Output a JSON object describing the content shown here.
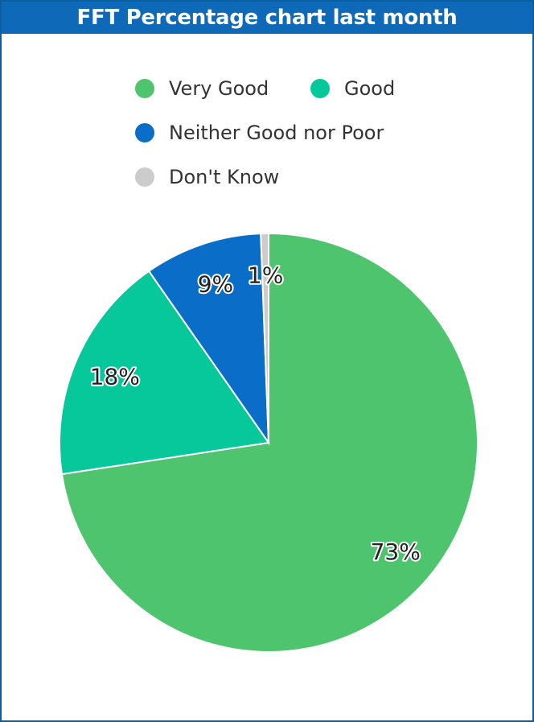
{
  "title": "FFT Percentage chart last month",
  "chart_data": {
    "type": "pie",
    "title": "FFT Percentage chart last month",
    "legend_position": "top",
    "slices": [
      {
        "name": "Very Good",
        "value": 72.6,
        "label": "73%",
        "color": "#4fc46e"
      },
      {
        "name": "Good",
        "value": 17.7,
        "label": "18%",
        "color": "#06c89a"
      },
      {
        "name": "Neither Good nor Poor",
        "value": 9.1,
        "label": "9%",
        "color": "#0a6ec8"
      },
      {
        "name": "Don't Know",
        "value": 0.6,
        "label": "1%",
        "color": "#cccccc"
      }
    ]
  }
}
